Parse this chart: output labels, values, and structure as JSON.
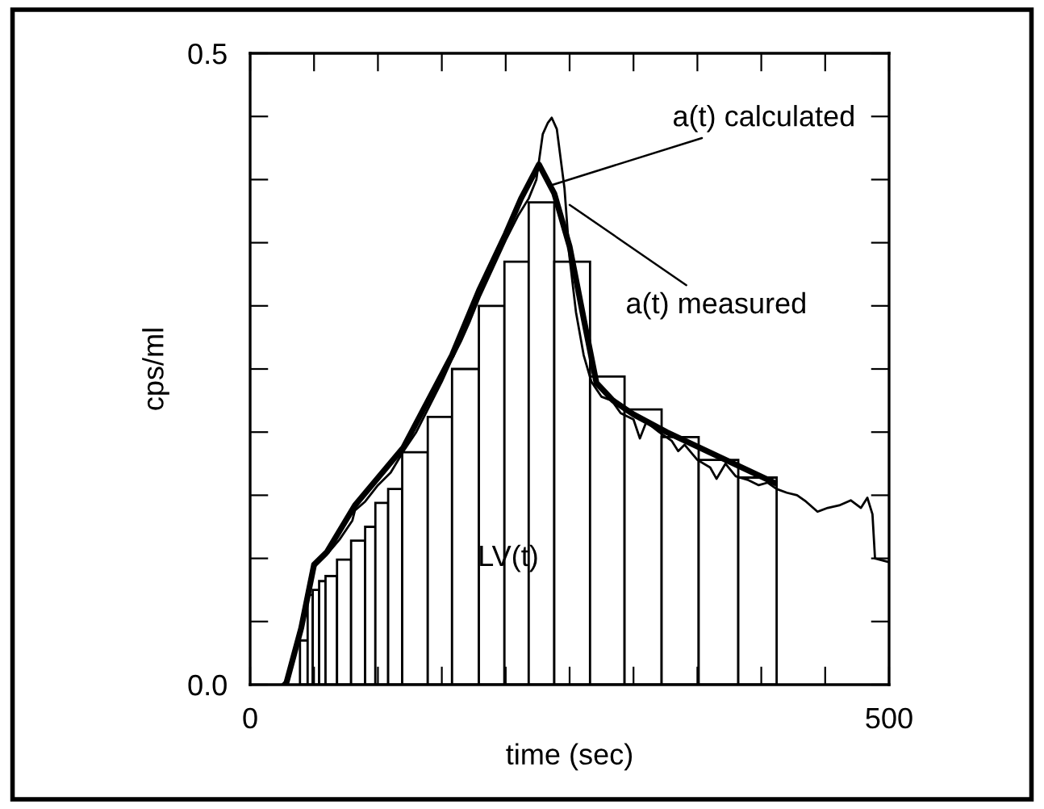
{
  "chart_data": {
    "type": "histogram",
    "xlabel": "time (sec)",
    "ylabel": "cps/ml",
    "bins": [
      39,
      45,
      49,
      54,
      59,
      68,
      79,
      90,
      98,
      108,
      119,
      139,
      158,
      179,
      199,
      218,
      238,
      266,
      293,
      322,
      351,
      382,
      412
    ],
    "values": [
      0.035,
      0.071,
      0.075,
      0.082,
      0.086,
      0.099,
      0.114,
      0.125,
      0.144,
      0.155,
      0.184,
      0.212,
      0.25,
      0.3,
      0.335,
      0.382,
      0.335,
      0.244,
      0.218,
      0.196,
      0.178,
      0.164
    ],
    "color": "#ffffff",
    "series": [
      {
        "type": "line",
        "color": "#000000",
        "x": [
          28,
          40,
          50,
          60,
          82,
          120,
          158,
          179,
          200,
          212,
          226,
          238,
          250,
          261,
          271,
          284,
          300,
          326,
          368,
          410
        ],
        "values": [
          0,
          0.045,
          0.095,
          0.105,
          0.142,
          0.188,
          0.261,
          0.312,
          0.357,
          0.385,
          0.412,
          0.389,
          0.347,
          0.29,
          0.239,
          0.225,
          0.214,
          0.2,
          0.18,
          0.16
        ]
      },
      {
        "type": "line",
        "color": "#000000",
        "x": [
          25,
          30,
          38,
          44,
          48,
          52,
          60,
          70,
          80,
          82,
          90,
          100,
          110,
          120,
          130,
          140,
          150,
          158,
          165,
          172,
          180,
          190,
          200,
          210,
          218,
          224,
          229,
          233,
          236,
          240,
          246,
          250,
          255,
          261,
          267,
          275,
          283,
          290,
          300,
          305,
          310,
          320,
          330,
          335,
          340,
          350,
          360,
          365,
          372,
          380,
          390,
          398,
          405,
          412,
          420,
          428,
          435,
          444,
          452,
          461,
          470,
          478,
          483,
          487,
          489,
          500
        ],
        "values": [
          0,
          0.005,
          0.04,
          0.07,
          0.09,
          0.095,
          0.103,
          0.115,
          0.13,
          0.138,
          0.145,
          0.158,
          0.168,
          0.185,
          0.2,
          0.22,
          0.24,
          0.258,
          0.272,
          0.288,
          0.308,
          0.33,
          0.352,
          0.372,
          0.385,
          0.4,
          0.436,
          0.445,
          0.449,
          0.44,
          0.393,
          0.338,
          0.295,
          0.261,
          0.24,
          0.228,
          0.225,
          0.215,
          0.21,
          0.195,
          0.208,
          0.2,
          0.193,
          0.185,
          0.19,
          0.178,
          0.172,
          0.163,
          0.175,
          0.165,
          0.162,
          0.158,
          0.16,
          0.155,
          0.152,
          0.15,
          0.145,
          0.137,
          0.14,
          0.142,
          0.146,
          0.14,
          0.148,
          0.135,
          0.1,
          0.097
        ]
      }
    ],
    "annotations": [
      {
        "text": "a(t) calculated",
        "x": 234,
        "y": 0.395
      },
      {
        "text": "a(t) measured",
        "x": 250,
        "y": 0.38
      },
      {
        "text": "LV(t)",
        "x": 202,
        "y": 0.1
      }
    ],
    "xlim": [
      0,
      500
    ],
    "ylim": [
      0,
      0.5
    ],
    "xticks": [
      0,
      {
        "value": 50,
        "label": null
      },
      {
        "value": 100,
        "label": null
      },
      {
        "value": 150,
        "label": null
      },
      {
        "value": 200,
        "label": null
      },
      {
        "value": 250,
        "label": null
      },
      {
        "value": 300,
        "label": null
      },
      {
        "value": 350,
        "label": null
      },
      {
        "value": 400,
        "label": null
      },
      {
        "value": 450,
        "label": null
      },
      500
    ],
    "yticks": [
      {
        "value": 0,
        "label": "0.0"
      },
      {
        "value": 0.05,
        "label": null
      },
      {
        "value": 0.1,
        "label": null
      },
      {
        "value": 0.15,
        "label": null
      },
      {
        "value": 0.2,
        "label": null
      },
      {
        "value": 0.25,
        "label": null
      },
      {
        "value": 0.3,
        "label": null
      },
      {
        "value": 0.35,
        "label": null
      },
      {
        "value": 0.4,
        "label": null
      },
      {
        "value": 0.45,
        "label": null
      },
      0.5
    ],
    "grid": false,
    "legend": false
  }
}
